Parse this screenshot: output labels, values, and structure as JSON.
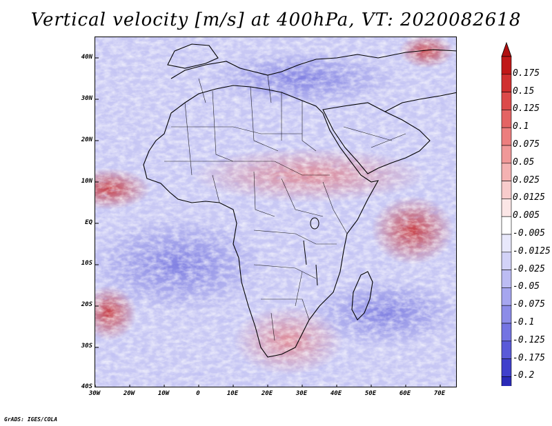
{
  "title": "Vertical velocity [m/s] at 400hPa, VT: 2020082618",
  "credit": "GrADS: IGES/COLA",
  "map": {
    "region": "Africa",
    "lon_range": [
      -30,
      75
    ],
    "lat_range": [
      -40,
      45
    ],
    "lat_ticks": [
      "40N",
      "30N",
      "20N",
      "10N",
      "EQ",
      "10S",
      "20S",
      "30S",
      "40S"
    ],
    "lon_ticks": [
      "30W",
      "20W",
      "10W",
      "0",
      "10E",
      "20E",
      "30E",
      "40E",
      "50E",
      "60E",
      "70E"
    ]
  },
  "colorbar": {
    "labels": [
      "0.175",
      "0.15",
      "0.125",
      "0.1",
      "0.075",
      "0.05",
      "0.025",
      "0.0125",
      "0.005",
      "-0.005",
      "-0.0125",
      "-0.025",
      "-0.05",
      "-0.075",
      "-0.1",
      "-0.125",
      "-0.175",
      "-0.2"
    ],
    "colors": [
      "#c01818",
      "#d03030",
      "#dc4a4a",
      "#e46464",
      "#ec7e7e",
      "#f09898",
      "#f4b2b2",
      "#f8cccc",
      "#fbe6e6",
      "#ffffff",
      "#e8e8fb",
      "#d2d2f7",
      "#bcbcf3",
      "#a6a6ef",
      "#8c8ce8",
      "#7474e2",
      "#5a5ad8",
      "#4040cc",
      "#2a2ab8"
    ],
    "arrow_top_color": "#b01010",
    "arrow_bottom_color": "#2020a8"
  }
}
